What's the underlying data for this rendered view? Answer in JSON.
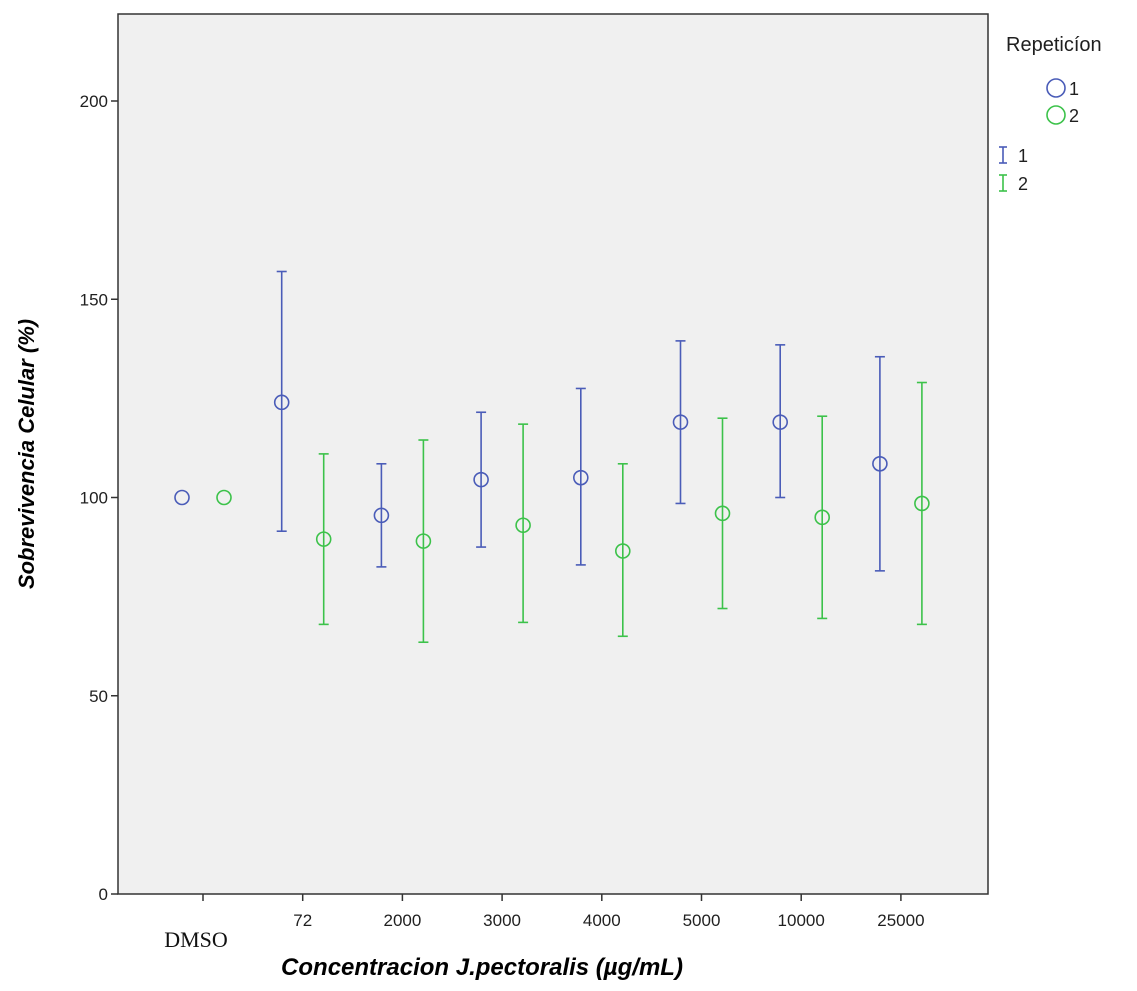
{
  "chart_data": {
    "type": "scatter",
    "title": "",
    "xlabel": "Concentracion J.pectoralis (µg/mL)",
    "ylabel": "Sobrevivencia Celular (%)",
    "ylim": [
      0,
      220
    ],
    "yticks": [
      0,
      50,
      100,
      150,
      200
    ],
    "grid": false,
    "categories": [
      "DMSO",
      "72",
      "2000",
      "3000",
      "4000",
      "5000",
      "10000",
      "25000"
    ],
    "legend": {
      "position": "right",
      "title": "Repeticíon",
      "marker_entries": [
        "1",
        "2"
      ],
      "errorbar_entries": [
        "1",
        "2"
      ]
    },
    "series": [
      {
        "name": "1",
        "color": "#4a5cb8",
        "mean": [
          100,
          124,
          95.5,
          104.5,
          105,
          119,
          119,
          108.5
        ],
        "low": [
          null,
          91.5,
          82.5,
          87.5,
          83,
          98.5,
          100,
          81.5
        ],
        "high": [
          null,
          157,
          108.5,
          121.5,
          127.5,
          139.5,
          138.5,
          135.5
        ]
      },
      {
        "name": "2",
        "color": "#3cc24a",
        "mean": [
          100,
          89.5,
          89,
          93,
          86.5,
          96,
          95,
          98.5
        ],
        "low": [
          null,
          68,
          63.5,
          68.5,
          65,
          72,
          69.5,
          68
        ],
        "high": [
          null,
          111,
          114.5,
          118.5,
          108.5,
          120,
          120.5,
          129
        ]
      }
    ]
  }
}
